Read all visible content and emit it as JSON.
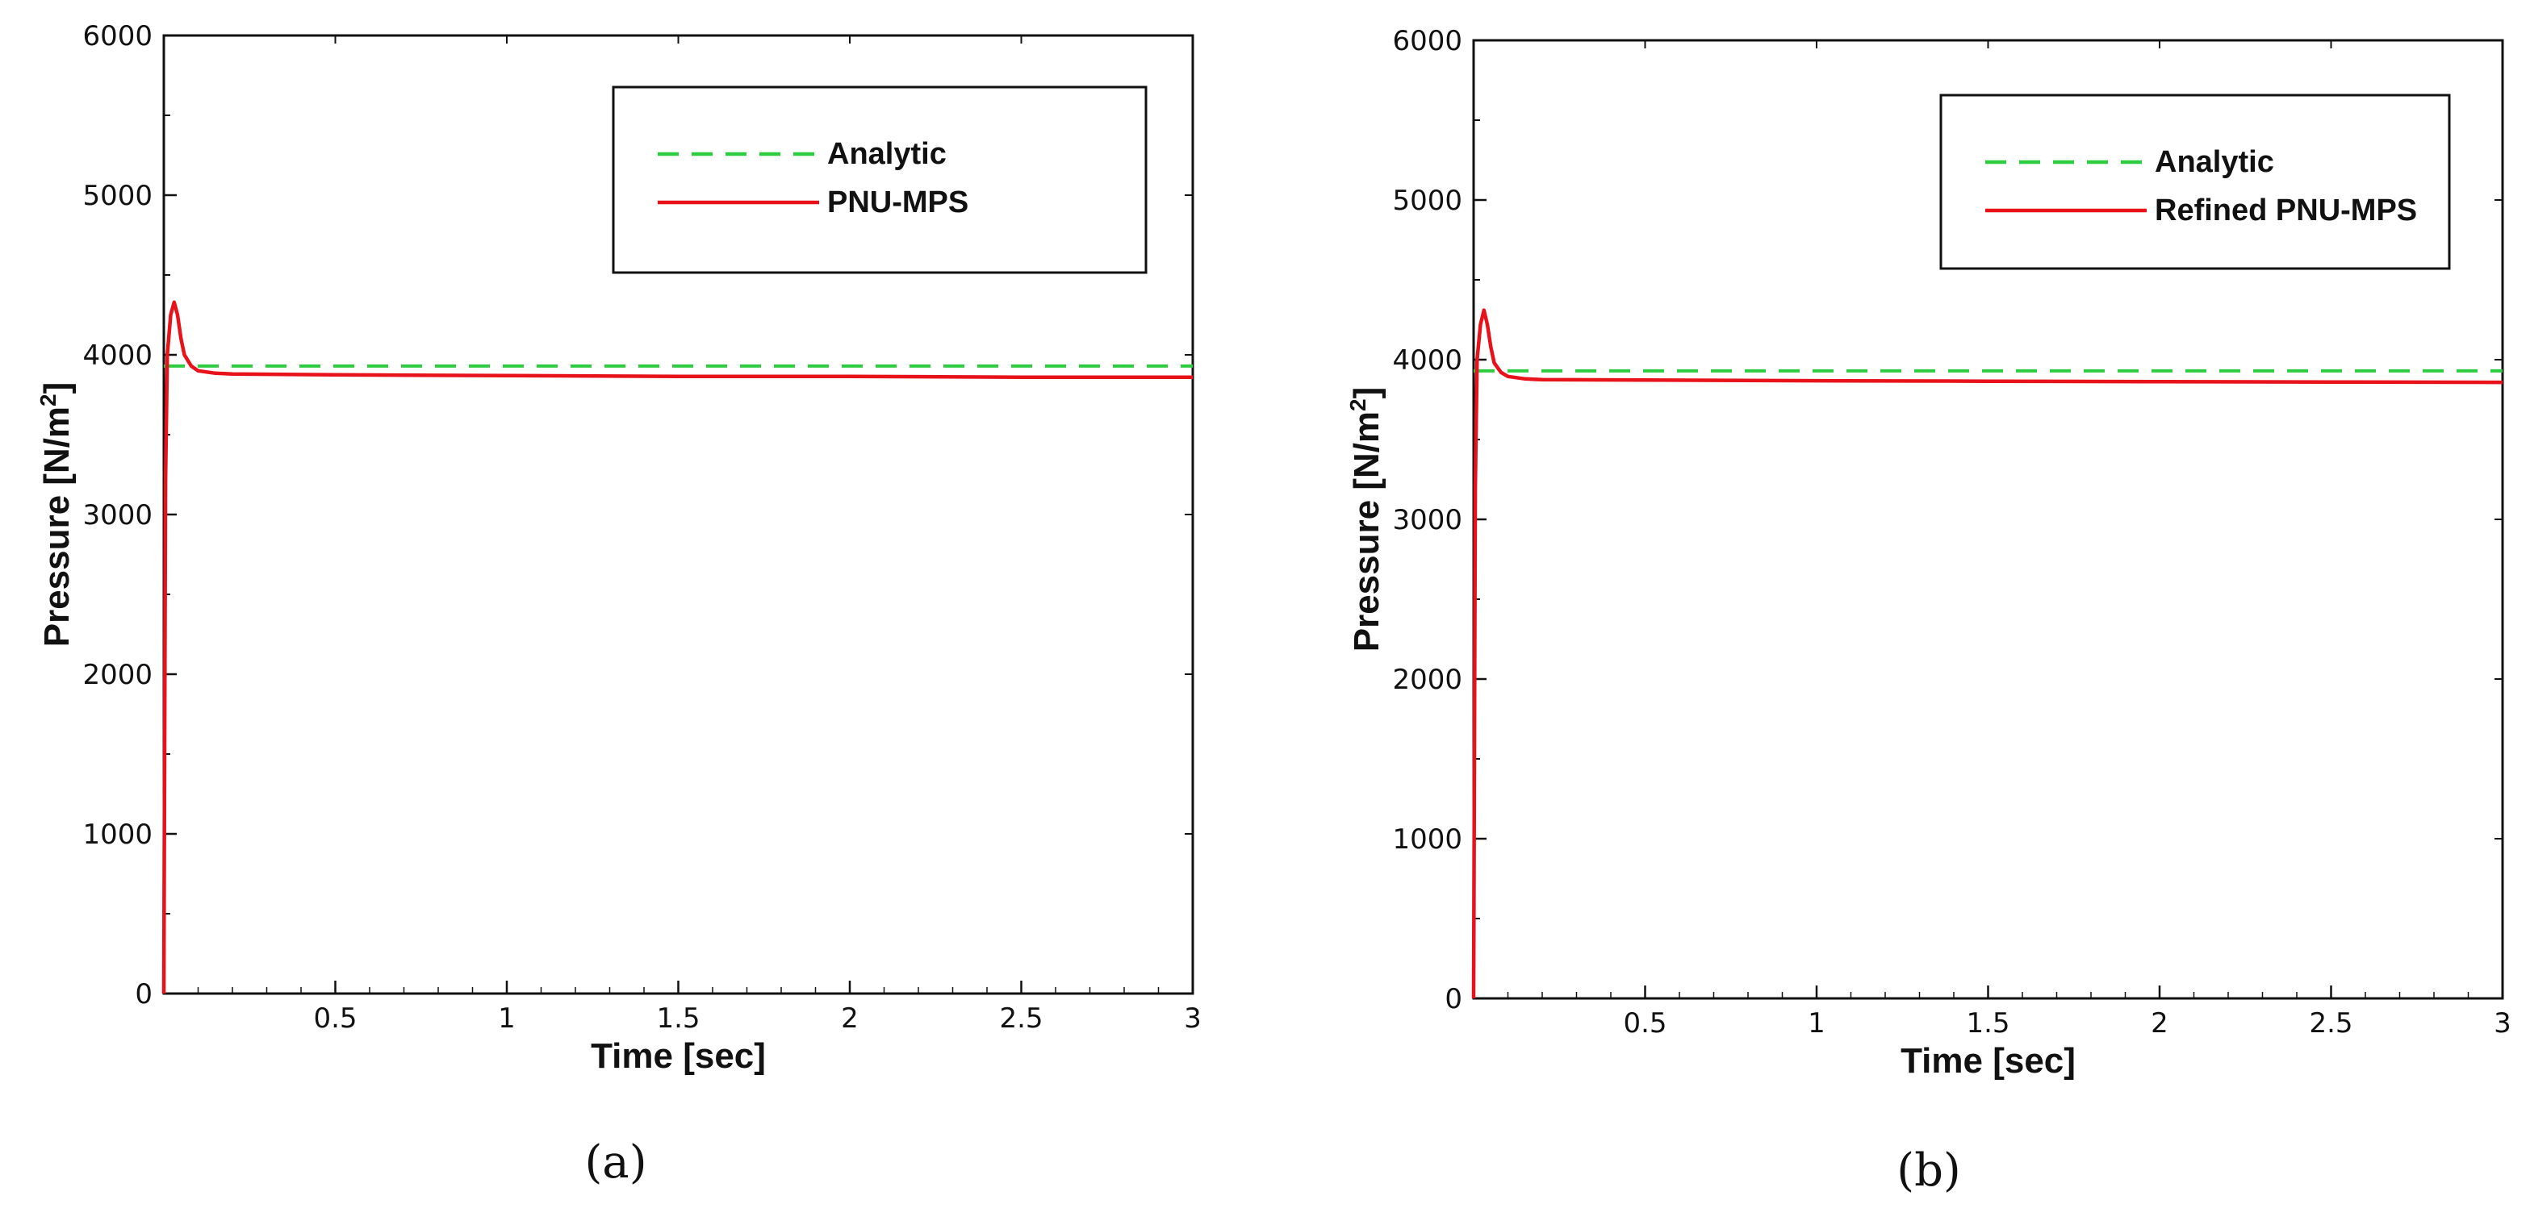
{
  "chart_data": [
    {
      "type": "line",
      "panel_label": "(a)",
      "xlabel": "Time [sec]",
      "ylabel": "Pressure [N/m",
      "ylabel_superscript": "2",
      "ylabel_suffix": "]",
      "xlim": [
        0,
        3
      ],
      "ylim": [
        0,
        6000
      ],
      "x_ticks": [
        "0.5",
        "1",
        "1.5",
        "2",
        "2.5",
        "3"
      ],
      "y_ticks": [
        "0",
        "1000",
        "2000",
        "3000",
        "4000",
        "5000",
        "6000"
      ],
      "grid": false,
      "legend_position": "top-right",
      "series": [
        {
          "name": "Analytic",
          "style": "dashed",
          "color": "#2ecc40",
          "x": [
            0,
            3
          ],
          "y": [
            3930,
            3930
          ]
        },
        {
          "name": "PNU-MPS",
          "style": "solid",
          "color": "#e8121b",
          "x": [
            0,
            0.005,
            0.01,
            0.02,
            0.03,
            0.04,
            0.05,
            0.06,
            0.08,
            0.1,
            0.15,
            0.2,
            0.5,
            1,
            1.5,
            2,
            2.5,
            3
          ],
          "y": [
            0,
            3200,
            4000,
            4250,
            4330,
            4250,
            4100,
            4000,
            3930,
            3900,
            3885,
            3880,
            3875,
            3870,
            3865,
            3865,
            3860,
            3860
          ]
        }
      ]
    },
    {
      "type": "line",
      "panel_label": "(b)",
      "xlabel": "Time [sec]",
      "ylabel": "Pressure [N/m",
      "ylabel_superscript": "2",
      "ylabel_suffix": "]",
      "xlim": [
        0,
        3
      ],
      "ylim": [
        0,
        6000
      ],
      "x_ticks": [
        "0.5",
        "1",
        "1.5",
        "2",
        "2.5",
        "3"
      ],
      "y_ticks": [
        "0",
        "1000",
        "2000",
        "3000",
        "4000",
        "5000",
        "6000"
      ],
      "grid": false,
      "legend_position": "top-right",
      "series": [
        {
          "name": "Analytic",
          "style": "dashed",
          "color": "#2ecc40",
          "x": [
            0,
            3
          ],
          "y": [
            3930,
            3930
          ]
        },
        {
          "name": "Refined PNU-MPS",
          "style": "solid",
          "color": "#e8121b",
          "x": [
            0,
            0.005,
            0.01,
            0.02,
            0.03,
            0.04,
            0.05,
            0.06,
            0.08,
            0.1,
            0.15,
            0.2,
            0.5,
            1,
            1.5,
            2,
            2.5,
            3
          ],
          "y": [
            0,
            3200,
            4000,
            4220,
            4310,
            4220,
            4080,
            3980,
            3920,
            3895,
            3880,
            3875,
            3872,
            3868,
            3865,
            3862,
            3860,
            3858
          ]
        }
      ]
    }
  ]
}
